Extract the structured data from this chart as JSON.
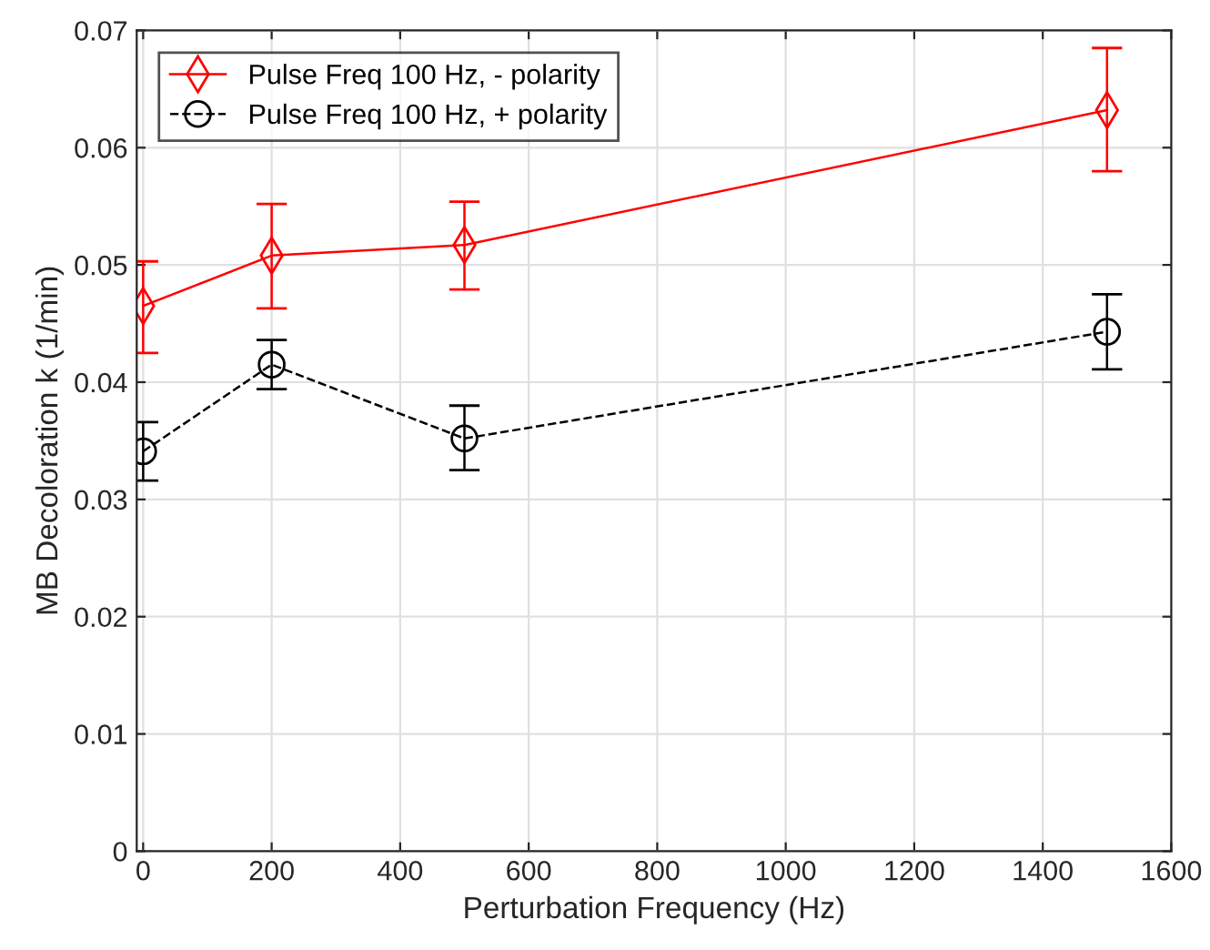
{
  "chart_data": {
    "type": "line",
    "xlabel": "Perturbation Frequency (Hz)",
    "ylabel": "MB Decoloration k (1/min)",
    "x": [
      0,
      200,
      500,
      1500
    ],
    "series": [
      {
        "name": "Pulse Freq 100 Hz, - polarity",
        "color": "#ff0000",
        "marker": "diamond",
        "line_style": "solid",
        "values": [
          0.0465,
          0.0508,
          0.0517,
          0.0632
        ],
        "errors": [
          [
            0.0425,
            0.0503
          ],
          [
            0.0463,
            0.0552
          ],
          [
            0.0479,
            0.0554
          ],
          [
            0.058,
            0.0685
          ]
        ]
      },
      {
        "name": "Pulse Freq 100 Hz, + polarity",
        "color": "#000000",
        "marker": "circle",
        "line_style": "dashed",
        "values": [
          0.0341,
          0.0415,
          0.0352,
          0.0443
        ],
        "errors": [
          [
            0.0316,
            0.0366
          ],
          [
            0.0394,
            0.0436
          ],
          [
            0.0325,
            0.038
          ],
          [
            0.0411,
            0.0475
          ]
        ]
      }
    ],
    "xlim": [
      -10,
      1600
    ],
    "xticks": [
      0,
      200,
      400,
      600,
      800,
      1000,
      1200,
      1400,
      1600
    ],
    "ylim": [
      0,
      0.07
    ],
    "yticks": [
      0,
      0.01,
      0.02,
      0.03,
      0.04,
      0.05,
      0.06,
      0.07
    ],
    "grid": true,
    "legend": "top left"
  }
}
